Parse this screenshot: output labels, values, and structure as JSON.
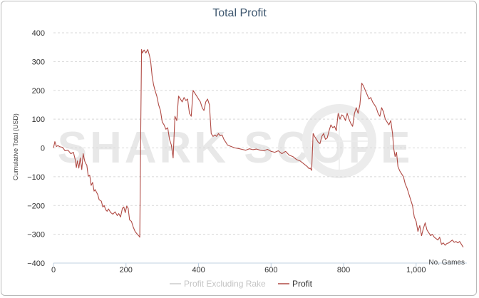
{
  "chart_data": {
    "type": "line",
    "title": "Total Profit",
    "xlabel": "No. Games",
    "ylabel": "Cumulative Total (USD)",
    "watermark": "SHARK SCOPE",
    "xlim": [
      0,
      1140
    ],
    "ylim": [
      -400,
      400
    ],
    "x_ticks": [
      0,
      200,
      400,
      600,
      800,
      1000
    ],
    "x_tick_labels": [
      "0",
      "200",
      "400",
      "600",
      "800",
      "1,000"
    ],
    "y_ticks": [
      400,
      300,
      200,
      100,
      0,
      -100,
      -200,
      -300,
      -400
    ],
    "y_tick_labels": [
      "400",
      "300",
      "200",
      "100",
      "0",
      "−100",
      "−200",
      "−300",
      "−400"
    ],
    "grid": "horizontal dashed",
    "legend_placement": "bottom-center",
    "series": [
      {
        "name": "Profit Excluding Rake",
        "color": "#cccccc",
        "x": [],
        "y": []
      },
      {
        "name": "Profit",
        "color": "#b04a44",
        "x": [
          0,
          4,
          8,
          12,
          18,
          25,
          32,
          40,
          48,
          55,
          60,
          63,
          66,
          70,
          74,
          78,
          82,
          86,
          88,
          92,
          96,
          100,
          104,
          108,
          112,
          115,
          118,
          122,
          126,
          132,
          136,
          140,
          144,
          148,
          152,
          158,
          164,
          170,
          176,
          180,
          185,
          190,
          194,
          198,
          202,
          206,
          210,
          215,
          220,
          225,
          230,
          235,
          238,
          241,
          243,
          245,
          250,
          255,
          260,
          265,
          268,
          272,
          276,
          280,
          285,
          290,
          295,
          300,
          305,
          310,
          315,
          320,
          325,
          330,
          335,
          340,
          345,
          350,
          355,
          360,
          365,
          370,
          375,
          380,
          385,
          390,
          395,
          400,
          405,
          410,
          415,
          420,
          425,
          430,
          435,
          440,
          445,
          450,
          455,
          460,
          465,
          470,
          475,
          480,
          490,
          500,
          510,
          520,
          530,
          540,
          550,
          560,
          570,
          580,
          590,
          600,
          610,
          620,
          630,
          640,
          650,
          660,
          670,
          680,
          690,
          700,
          705,
          708,
          712,
          716,
          720,
          725,
          730,
          735,
          740,
          745,
          750,
          755,
          760,
          765,
          770,
          775,
          780,
          785,
          790,
          795,
          800,
          805,
          810,
          815,
          820,
          825,
          830,
          835,
          840,
          845,
          850,
          855,
          860,
          865,
          870,
          875,
          880,
          885,
          890,
          895,
          900,
          905,
          910,
          915,
          920,
          925,
          930,
          935,
          938,
          942,
          946,
          950,
          955,
          960,
          965,
          970,
          975,
          980,
          985,
          990,
          995,
          1000,
          1005,
          1010,
          1015,
          1020,
          1025,
          1030,
          1035,
          1040,
          1045,
          1050,
          1055,
          1060,
          1065,
          1070,
          1075,
          1080,
          1085,
          1090,
          1095,
          1100,
          1105,
          1110,
          1115,
          1120,
          1125,
          1130
        ],
        "y": [
          0,
          22,
          5,
          8,
          4,
          2,
          -10,
          -8,
          -20,
          -15,
          -40,
          -68,
          -45,
          -70,
          -35,
          -75,
          -20,
          -45,
          -52,
          -60,
          -98,
          -95,
          -130,
          -120,
          -150,
          -145,
          -152,
          -162,
          -180,
          -185,
          -205,
          -200,
          -215,
          -220,
          -212,
          -225,
          -230,
          -222,
          -235,
          -228,
          -240,
          -210,
          -205,
          -225,
          -202,
          -210,
          -250,
          -255,
          -275,
          -290,
          -298,
          -305,
          -310,
          100,
          342,
          330,
          340,
          330,
          342,
          320,
          300,
          250,
          220,
          200,
          180,
          150,
          130,
          90,
          80,
          65,
          70,
          30,
          10,
          -35,
          110,
          95,
          180,
          170,
          160,
          175,
          165,
          170,
          120,
          110,
          200,
          190,
          180,
          170,
          160,
          140,
          130,
          160,
          170,
          150,
          50,
          40,
          45,
          40,
          50,
          42,
          45,
          30,
          20,
          10,
          5,
          0,
          -2,
          -5,
          -8,
          -3,
          -6,
          -4,
          -8,
          -10,
          -5,
          -12,
          -15,
          -10,
          -20,
          -12,
          -25,
          -30,
          -40,
          -45,
          -55,
          -65,
          -72,
          -70,
          -78,
          50,
          40,
          30,
          20,
          15,
          40,
          50,
          30,
          35,
          60,
          80,
          70,
          75,
          60,
          120,
          100,
          115,
          110,
          95,
          120,
          100,
          85,
          75,
          120,
          140,
          120,
          150,
          225,
          215,
          200,
          185,
          170,
          175,
          160,
          150,
          140,
          120,
          110,
          140,
          125,
          100,
          90,
          80,
          95,
          50,
          0,
          -30,
          -15,
          -65,
          -80,
          -90,
          -100,
          -125,
          -140,
          -160,
          -180,
          -200,
          -240,
          -255,
          -290,
          -270,
          -305,
          -280,
          -260,
          -285,
          -295,
          -305,
          -300,
          -310,
          -315,
          -320,
          -310,
          -335,
          -330,
          -338,
          -332,
          -330,
          -325,
          -320,
          -328,
          -325,
          -330,
          -325,
          -335,
          -345
        ]
      }
    ]
  }
}
